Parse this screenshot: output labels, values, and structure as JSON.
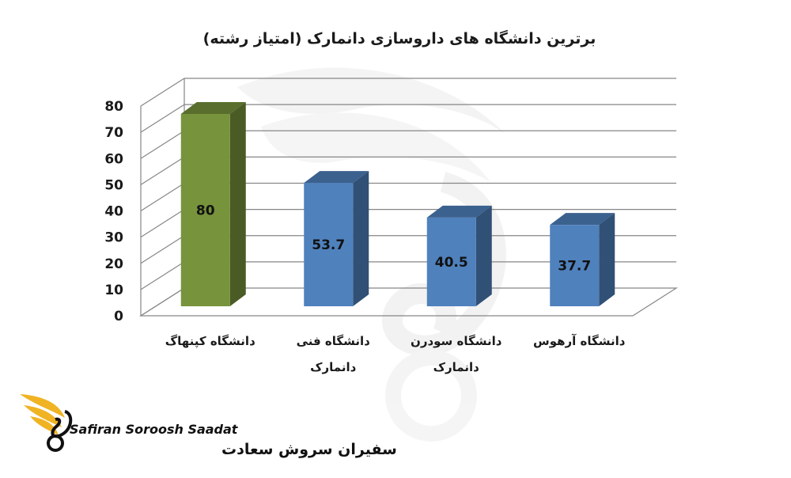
{
  "chart_data": {
    "type": "bar",
    "title": "برترین دانشگاه های داروسازی دانمارک (امتیاز رشته)",
    "categories": [
      [
        "دانشگاه کپنهاگ"
      ],
      [
        "دانشگاه فنی",
        "دانمارک"
      ],
      [
        "دانشگاه سودرن",
        "دانمارک"
      ],
      [
        "دانشگاه آرهوس"
      ]
    ],
    "values": [
      80,
      53.7,
      40.5,
      37.7
    ],
    "data_labels": [
      "80",
      "53.7",
      "40.5",
      "37.7"
    ],
    "y_ticks": [
      0,
      10,
      20,
      30,
      40,
      50,
      60,
      70,
      80
    ],
    "ylim": [
      0,
      80
    ],
    "grid": true,
    "style": "3d-column",
    "colors": {
      "highlight": "#77933c",
      "default": "#4f81bd",
      "gridline": "#868686"
    }
  },
  "logo": {
    "name_en": "Safiran Soroosh Saadat",
    "name_fa": "سفیران سروش سعادت",
    "colors": {
      "wing": "#f0b323",
      "text": "#111111"
    }
  }
}
